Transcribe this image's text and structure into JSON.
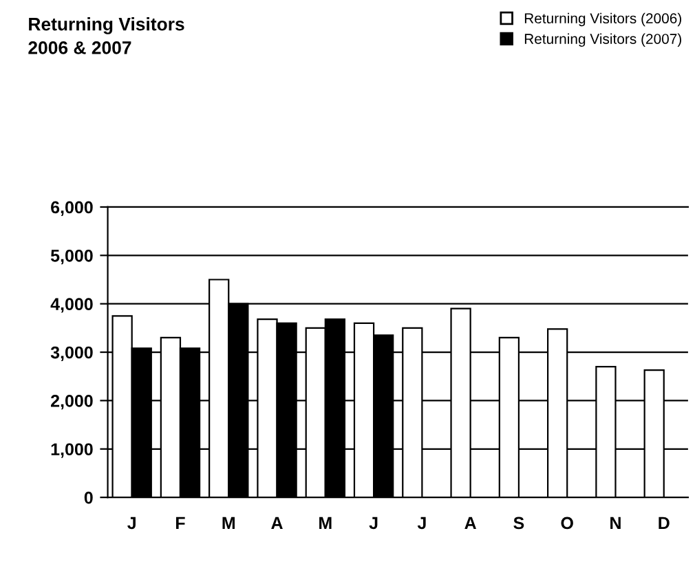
{
  "chart_data": {
    "type": "bar",
    "title": "Returning Visitors\n2006 & 2007",
    "categories": [
      "J",
      "F",
      "M",
      "A",
      "M",
      "J",
      "J",
      "A",
      "S",
      "O",
      "N",
      "D"
    ],
    "series": [
      {
        "name": "Returning Visitors (2006)",
        "color": "#ffffff",
        "values": [
          3750,
          3300,
          4500,
          3680,
          3500,
          3600,
          3500,
          3900,
          3300,
          3480,
          2700,
          2630
        ]
      },
      {
        "name": "Returning Visitors (2007)",
        "color": "#000000",
        "values": [
          3080,
          3080,
          4000,
          3600,
          3680,
          3350,
          null,
          null,
          null,
          null,
          null,
          null
        ]
      }
    ],
    "ylim": [
      0,
      6000
    ],
    "yticks": [
      {
        "value": 0,
        "label": "0"
      },
      {
        "value": 1000,
        "label": "1,000"
      },
      {
        "value": 2000,
        "label": "2,000"
      },
      {
        "value": 3000,
        "label": "3,000"
      },
      {
        "value": 4000,
        "label": "4,000"
      },
      {
        "value": 5000,
        "label": "5,000"
      },
      {
        "value": 6000,
        "label": "6,000"
      }
    ],
    "grid": "y",
    "legend": "top right"
  }
}
